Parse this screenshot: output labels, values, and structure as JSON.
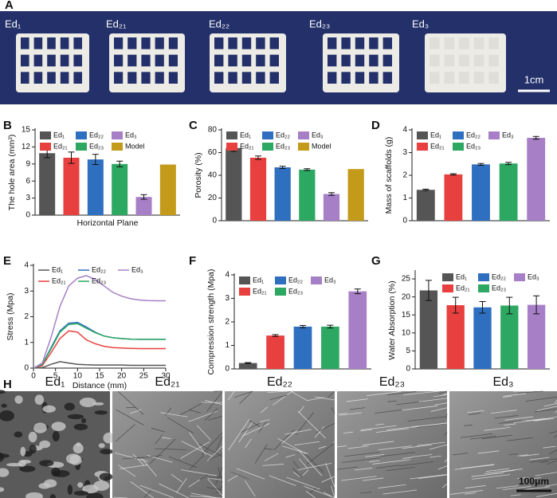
{
  "photo": {
    "panel": "A",
    "labels": [
      "Ed₁",
      "Ed₂₁",
      "Ed₂₂",
      "Ed₂₃",
      "Ed₃"
    ],
    "scale_bar": "1cm"
  },
  "chart_data": [
    {
      "type": "bar",
      "panel": "B",
      "ylabel": "The hole area (mm²)",
      "xlabel": "Horizontal Plane",
      "legend": "upper left",
      "ylim": [
        0,
        15
      ],
      "yticks": [
        0,
        3,
        6,
        9,
        12,
        15
      ],
      "series": [
        {
          "name": "Ed₁",
          "color": "#555555",
          "values": [
            10.9
          ],
          "errors": [
            0.8
          ]
        },
        {
          "name": "Ed₂₁",
          "color": "#e8403f",
          "values": [
            10.1
          ],
          "errors": [
            1.0
          ]
        },
        {
          "name": "Ed₂₂",
          "color": "#2f6fbf",
          "values": [
            9.8
          ],
          "errors": [
            0.9
          ]
        },
        {
          "name": "Ed₂₃",
          "color": "#2da862",
          "values": [
            9.0
          ],
          "errors": [
            0.5
          ]
        },
        {
          "name": "Ed₃",
          "color": "#a77fc7",
          "values": [
            3.2
          ],
          "errors": [
            0.4
          ]
        },
        {
          "name": "Model",
          "color": "#c49a1b",
          "values": [
            8.9
          ],
          "errors": [
            null
          ]
        }
      ]
    },
    {
      "type": "bar",
      "panel": "C",
      "ylabel": "Porosity (%)",
      "legend": "upper left",
      "ylim": [
        0,
        80
      ],
      "yticks": [
        0,
        20,
        40,
        60,
        80
      ],
      "series": [
        {
          "name": "Ed₁",
          "color": "#555555",
          "values": [
            64
          ],
          "errors": [
            3
          ]
        },
        {
          "name": "Ed₂₁",
          "color": "#e8403f",
          "values": [
            55.5
          ],
          "errors": [
            1.5
          ]
        },
        {
          "name": "Ed₂₂",
          "color": "#2f6fbf",
          "values": [
            47
          ],
          "errors": [
            1
          ]
        },
        {
          "name": "Ed₂₃",
          "color": "#2da862",
          "values": [
            45
          ],
          "errors": [
            0.8
          ]
        },
        {
          "name": "Ed₃",
          "color": "#a77fc7",
          "values": [
            23.5
          ],
          "errors": [
            1.2
          ]
        },
        {
          "name": "Model",
          "color": "#c49a1b",
          "values": [
            45.5
          ],
          "errors": [
            null
          ]
        }
      ]
    },
    {
      "type": "bar",
      "panel": "D",
      "ylabel": "Mass of scaffolds (g)",
      "legend": "upper left",
      "ylim": [
        0,
        4
      ],
      "yticks": [
        0,
        1,
        2,
        3,
        4
      ],
      "series": [
        {
          "name": "Ed₁",
          "color": "#555555",
          "values": [
            1.36
          ],
          "errors": [
            0.03
          ]
        },
        {
          "name": "Ed₂₁",
          "color": "#e8403f",
          "values": [
            2.04
          ],
          "errors": [
            0.03
          ]
        },
        {
          "name": "Ed₂₂",
          "color": "#2f6fbf",
          "values": [
            2.48
          ],
          "errors": [
            0.04
          ]
        },
        {
          "name": "Ed₂₃",
          "color": "#2da862",
          "values": [
            2.52
          ],
          "errors": [
            0.05
          ]
        },
        {
          "name": "Ed₃",
          "color": "#a77fc7",
          "values": [
            3.65
          ],
          "errors": [
            0.06
          ]
        }
      ]
    },
    {
      "type": "line",
      "panel": "E",
      "ylabel": "Stress (Mpa)",
      "xlabel": "Distance (mm)",
      "legend": "upper left",
      "xlim": [
        0,
        30
      ],
      "xticks": [
        0,
        5,
        10,
        15,
        20,
        25,
        30
      ],
      "ylim": [
        0,
        4
      ],
      "yticks": [
        0,
        1,
        2,
        3,
        4
      ],
      "x": [
        0,
        2,
        4,
        6,
        8,
        10,
        12,
        14,
        16,
        18,
        20,
        22,
        24,
        26,
        28,
        30
      ],
      "series": [
        {
          "name": "Ed₁",
          "color": "#555555",
          "values": [
            0,
            0.02,
            0.15,
            0.25,
            0.2,
            0.15,
            0.13,
            0.12,
            0.12,
            0.12,
            0.12,
            0.11,
            0.11,
            0.11,
            0.11,
            0.11
          ]
        },
        {
          "name": "Ed₂₁",
          "color": "#e8403f",
          "values": [
            0,
            0.1,
            0.6,
            1.15,
            1.45,
            1.4,
            1.1,
            0.95,
            0.85,
            0.8,
            0.78,
            0.77,
            0.76,
            0.76,
            0.76,
            0.76
          ]
        },
        {
          "name": "Ed₂₂",
          "color": "#2f6fbf",
          "values": [
            0,
            0.15,
            0.8,
            1.45,
            1.75,
            1.78,
            1.6,
            1.4,
            1.25,
            1.18,
            1.15,
            1.13,
            1.12,
            1.12,
            1.12,
            1.12
          ]
        },
        {
          "name": "Ed₂₃",
          "color": "#2da862",
          "values": [
            0,
            0.15,
            0.75,
            1.4,
            1.7,
            1.73,
            1.55,
            1.38,
            1.25,
            1.18,
            1.15,
            1.13,
            1.12,
            1.12,
            1.12,
            1.12
          ]
        },
        {
          "name": "Ed₃",
          "color": "#a77fc7",
          "values": [
            0,
            0.2,
            1.2,
            2.4,
            3.2,
            3.5,
            3.6,
            3.45,
            3.2,
            2.95,
            2.8,
            2.7,
            2.65,
            2.63,
            2.62,
            2.62
          ]
        }
      ]
    },
    {
      "type": "bar",
      "panel": "F",
      "ylabel": "Compression strength (Mpa)",
      "legend": "upper left",
      "ylim": [
        0,
        4
      ],
      "yticks": [
        0,
        1,
        2,
        3,
        4
      ],
      "series": [
        {
          "name": "Ed₁",
          "color": "#555555",
          "values": [
            0.25
          ],
          "errors": [
            0.02
          ]
        },
        {
          "name": "Ed₂₁",
          "color": "#e8403f",
          "values": [
            1.42
          ],
          "errors": [
            0.04
          ]
        },
        {
          "name": "Ed₂₂",
          "color": "#2f6fbf",
          "values": [
            1.8
          ],
          "errors": [
            0.05
          ]
        },
        {
          "name": "Ed₂₃",
          "color": "#2da862",
          "values": [
            1.8
          ],
          "errors": [
            0.06
          ]
        },
        {
          "name": "Ed₃",
          "color": "#a77fc7",
          "values": [
            3.3
          ],
          "errors": [
            0.1
          ]
        }
      ]
    },
    {
      "type": "bar",
      "panel": "G",
      "ylabel": "Water Absorption (%)",
      "legend": "upper right",
      "ylim": [
        0,
        27
      ],
      "yticks": [
        0,
        5,
        10,
        15,
        20,
        25
      ],
      "series": [
        {
          "name": "Ed₁",
          "color": "#555555",
          "values": [
            21.8
          ],
          "errors": [
            2.8
          ]
        },
        {
          "name": "Ed₂₁",
          "color": "#e8403f",
          "values": [
            17.7
          ],
          "errors": [
            2.2
          ]
        },
        {
          "name": "Ed₂₂",
          "color": "#2f6fbf",
          "values": [
            17.1
          ],
          "errors": [
            1.6
          ]
        },
        {
          "name": "Ed₂₃",
          "color": "#2da862",
          "values": [
            17.6
          ],
          "errors": [
            2.3
          ]
        },
        {
          "name": "Ed₃",
          "color": "#a77fc7",
          "values": [
            17.8
          ],
          "errors": [
            2.5
          ]
        }
      ]
    }
  ],
  "sem": {
    "panel": "H",
    "labels": [
      "Ed₁",
      "Ed₂₁",
      "Ed₂₂",
      "Ed₂₃",
      "Ed₃"
    ],
    "scale_bar": "100μm"
  }
}
